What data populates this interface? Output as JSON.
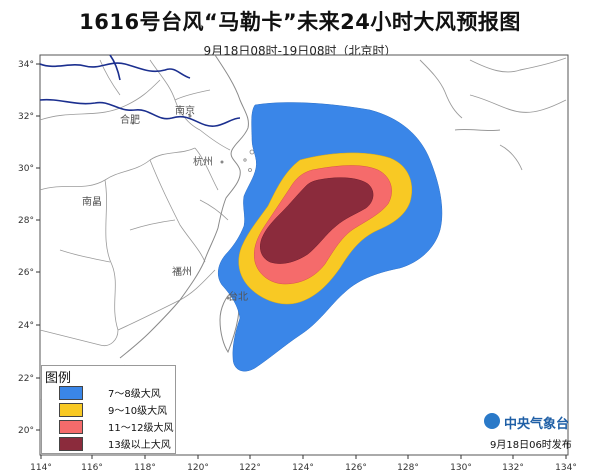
{
  "title": "1616号台风“马勒卡”未来24小时大风预报图",
  "subtitle": "9月18日08时-19日08时（北京时）",
  "axes": {
    "lon_ticks": [
      "114°",
      "116°",
      "118°",
      "120°",
      "122°",
      "124°",
      "126°",
      "128°",
      "130°",
      "132°",
      "134°"
    ],
    "lat_ticks": [
      "20°",
      "22°",
      "24°",
      "26°",
      "28°",
      "30°",
      "32°",
      "34°"
    ]
  },
  "cities": [
    "合肥",
    "南京",
    "杭州",
    "南昌",
    "福州",
    "台北"
  ],
  "legend": {
    "title": "图例",
    "items": [
      {
        "label": "7～8级大风",
        "color": "#3a86e8"
      },
      {
        "label": "9～10级大风",
        "color": "#f8c924"
      },
      {
        "label": "11～12级大风",
        "color": "#f56b6b"
      },
      {
        "label": "13级以上大风",
        "color": "#8b2b3c"
      }
    ]
  },
  "logo_text": "中央气象台",
  "issue_time": "9月18日06时发布",
  "colors": {
    "land_border": "#9a9a9a",
    "river": "#1b2f8f",
    "gale_7_8": "#3a86e8",
    "gale_9_10": "#f8c924",
    "gale_11_12": "#f56b6b",
    "gale_13_plus": "#8b2b3c"
  }
}
